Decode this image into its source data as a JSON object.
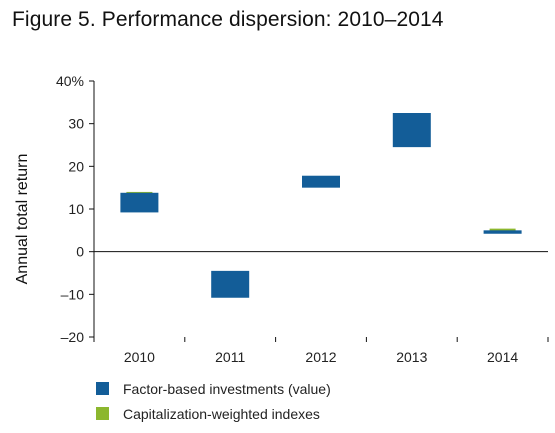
{
  "title": "Figure 5. Performance dispersion: 2010–2014",
  "colors": {
    "factor": "#135d98",
    "cap": "#8cb72e",
    "axis": "#111111"
  },
  "chart_data": {
    "type": "floating-bar",
    "title": "Figure 5. Performance dispersion: 2010–2014",
    "ylabel": "Annual total return",
    "ylim": [
      -20,
      40
    ],
    "yticks": [
      -20,
      -10,
      0,
      10,
      20,
      30,
      40
    ],
    "ytick_labels": [
      "–20",
      "–10",
      "0",
      "10",
      "20",
      "30",
      "40%"
    ],
    "categories": [
      "2010",
      "2011",
      "2012",
      "2013",
      "2014"
    ],
    "series": [
      {
        "name": "Factor-based investments (value)",
        "color": "#135d98",
        "ranges": [
          [
            9.2,
            13.8
          ],
          [
            -10.8,
            -4.5
          ],
          [
            15.0,
            17.8
          ],
          [
            24.5,
            32.5
          ],
          [
            4.2,
            5.0
          ]
        ]
      },
      {
        "name": "Capitalization-weighted indexes",
        "color": "#8cb72e",
        "ranges": [
          [
            12.6,
            14.0
          ],
          [
            -6.2,
            -4.8
          ],
          [
            16.3,
            16.9
          ],
          [
            24.6,
            28.3
          ],
          [
            4.8,
            5.4
          ]
        ]
      }
    ],
    "grid": false,
    "legend_position": "bottom-left"
  }
}
